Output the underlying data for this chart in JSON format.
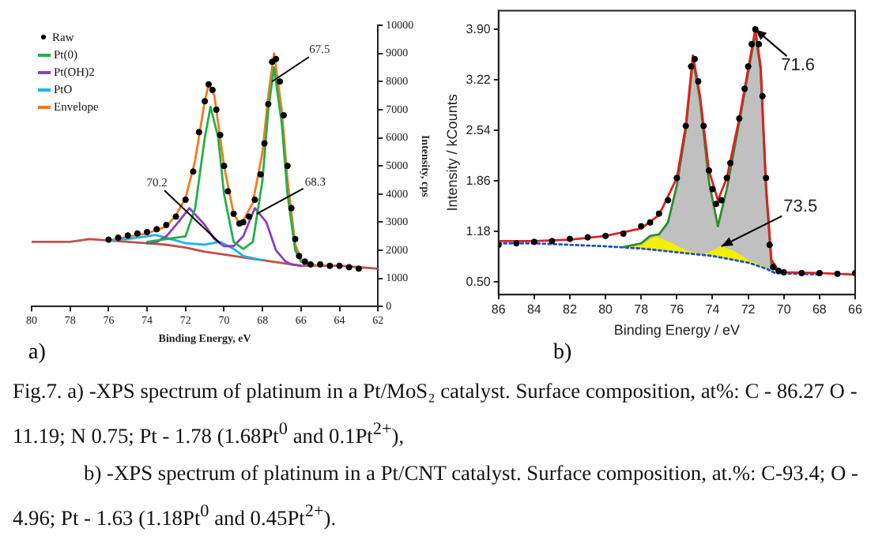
{
  "chart_data": [
    {
      "type": "line",
      "xlabel": "Binding Energy, eV",
      "ylabel": "Intensity, cps",
      "xlim": [
        80,
        62
      ],
      "xticks": [
        80,
        78,
        76,
        74,
        72,
        70,
        68,
        66,
        64,
        62
      ],
      "ylim": [
        0,
        10000
      ],
      "yticks": [
        0,
        1000,
        2000,
        3000,
        4000,
        5000,
        6000,
        7000,
        8000,
        9000,
        10000
      ],
      "legend": "top left",
      "annotations": [
        {
          "text": "67.5",
          "x": 67.5,
          "y": 8000
        },
        {
          "text": "70.2",
          "x": 70.2,
          "y": 2250
        },
        {
          "text": "68.3",
          "x": 68.3,
          "y": 3300
        },
        "a)",
        "Fig.7. a) -XPS spectrum of platinum in a Pt/MoS₂ catalyst. Surface composition, at%: C - 86.27 O - 11.19; N 0.75; Pt - 1.78 (1.68Pt$^{0}$ and 0.1Pt$^{2+}$),"
      ],
      "series": [
        {
          "name": "Raw",
          "type": "scatter",
          "marker": "circle",
          "color": "#000000",
          "x": [
            76,
            75.5,
            75,
            74.5,
            74,
            73.5,
            73,
            72.5,
            72,
            71.6,
            71.3,
            71,
            70.8,
            70.6,
            70.4,
            70.2,
            70,
            69.8,
            69.5,
            69.2,
            69,
            68.7,
            68.4,
            68.1,
            67.9,
            67.7,
            67.5,
            67.3,
            67.1,
            66.9,
            66.7,
            66.5,
            66.3,
            66.1,
            65.8,
            65.5,
            65,
            64.5,
            64,
            63.5,
            63
          ],
          "values": [
            2380,
            2450,
            2530,
            2600,
            2650,
            2750,
            2900,
            3200,
            3800,
            4800,
            6200,
            7300,
            7900,
            7700,
            7000,
            6100,
            5000,
            4100,
            3300,
            2950,
            3000,
            3200,
            3800,
            4700,
            5800,
            7200,
            8700,
            8800,
            8000,
            6800,
            5000,
            3500,
            2400,
            1800,
            1600,
            1500,
            1500,
            1450,
            1450,
            1400,
            1350
          ]
        },
        {
          "name": "Pt(0)",
          "color": "#22b04a",
          "x": [
            74,
            73,
            72,
            71.5,
            71,
            70.7,
            70.3,
            70,
            69.5,
            69,
            68.5,
            68,
            67.7,
            67.4,
            67,
            66.7,
            66.3,
            66,
            65.5
          ],
          "values": [
            2300,
            2400,
            2500,
            3500,
            6000,
            7100,
            6000,
            4000,
            2300,
            2050,
            2300,
            4500,
            7000,
            8500,
            6500,
            4000,
            2000,
            1600,
            1500
          ]
        },
        {
          "name": "Pt(OH)2",
          "color": "#8a3fc0",
          "x": [
            74,
            73.5,
            73,
            72.5,
            71.8,
            71,
            70.5,
            70,
            69.5,
            69,
            68.4,
            67.8,
            67.3,
            66.8,
            66.5,
            66
          ],
          "values": [
            2250,
            2300,
            2500,
            2900,
            3500,
            2900,
            2400,
            2150,
            2150,
            2500,
            3500,
            3000,
            2000,
            1600,
            1500,
            1450
          ]
        },
        {
          "name": "PtO",
          "color": "#1eb4e8",
          "x": [
            76,
            75,
            74,
            73.6,
            73,
            72,
            71,
            70.2,
            69.5,
            69,
            68
          ],
          "values": [
            2350,
            2400,
            2500,
            2550,
            2450,
            2250,
            2200,
            2300,
            2050,
            1800,
            1650
          ]
        },
        {
          "name": "Envelope",
          "color": "#f07c1e",
          "x": [
            76,
            75,
            74,
            73,
            72.5,
            72,
            71.5,
            71,
            70.8,
            70.5,
            70,
            69.5,
            69.2,
            69,
            68.5,
            68,
            67.7,
            67.4,
            67,
            66.7,
            66.3,
            66,
            65.5,
            65
          ],
          "values": [
            2350,
            2480,
            2600,
            2850,
            3250,
            3850,
            5200,
            7300,
            7900,
            7500,
            5000,
            3300,
            2950,
            3050,
            3700,
            5500,
            7500,
            9000,
            7000,
            4500,
            2200,
            1700,
            1500,
            1450
          ]
        },
        {
          "color": "#c0504d",
          "x": [
            80,
            78,
            77,
            76,
            75,
            74,
            73,
            72,
            71,
            70,
            69,
            68,
            67,
            66,
            65,
            64,
            63,
            62
          ],
          "values": [
            2300,
            2300,
            2400,
            2350,
            2300,
            2250,
            2200,
            2100,
            1950,
            1850,
            1750,
            1650,
            1550,
            1450,
            1450,
            1450,
            1400,
            1350
          ]
        }
      ]
    },
    {
      "type": "line",
      "xlabel": "Binding Energy / eV",
      "ylabel": "Intensity / kCounts",
      "xlim": [
        86,
        66
      ],
      "xticks": [
        86,
        84,
        82,
        80,
        78,
        76,
        74,
        72,
        70,
        68,
        66
      ],
      "ylim": [
        0.33,
        4.15
      ],
      "yticks": [
        {
          "value": 0.5,
          "label": "0.50"
        },
        1.18,
        1.86,
        2.54,
        3.22,
        {
          "value": 3.9,
          "label": "3.90"
        }
      ],
      "annotations": [
        {
          "text": "71.6",
          "x": 71.6,
          "y": 3.9
        },
        {
          "text": "73.5",
          "x": 73.5,
          "y": 0.98
        },
        "b)",
        "b) -XPS spectrum of platinum in a Pt/CNT catalyst. Surface composition, at.%: C-93.4; O - 4.96; Pt - 1.63 (1.18Pt$^{0}$ and 0.45Pt$^{2+}$)."
      ],
      "series": [
        {
          "type": "scatter",
          "marker": "circle",
          "color": "#000000",
          "x": [
            86,
            85,
            84,
            83,
            82,
            81,
            80,
            79,
            78,
            77.5,
            77,
            76.5,
            76,
            75.5,
            75.2,
            75,
            74.8,
            74.5,
            74.2,
            74,
            73.8,
            73.5,
            73.2,
            73,
            72.5,
            72.2,
            72,
            71.8,
            71.6,
            71.4,
            71.2,
            71,
            70.8,
            70.6,
            70.3,
            70,
            69,
            68,
            67,
            66
          ],
          "values": [
            1.0,
            1.02,
            1.04,
            1.05,
            1.08,
            1.1,
            1.12,
            1.15,
            1.25,
            1.3,
            1.42,
            1.6,
            1.9,
            2.6,
            3.4,
            3.5,
            3.2,
            2.6,
            2.0,
            1.75,
            1.55,
            1.6,
            1.9,
            2.1,
            2.7,
            3.1,
            3.4,
            3.7,
            3.9,
            3.7,
            3.0,
            1.9,
            1.0,
            0.7,
            0.65,
            0.63,
            0.62,
            0.62,
            0.61,
            0.62
          ]
        },
        {
          "color": "#e02020",
          "x": [
            86,
            84,
            82,
            80,
            78,
            77,
            76,
            75.5,
            75.1,
            74.7,
            74.2,
            73.7,
            73.2,
            72.5,
            71.9,
            71.6,
            71.3,
            71,
            70.7,
            70.3,
            70,
            68,
            66
          ],
          "values": [
            1.05,
            1.05,
            1.07,
            1.12,
            1.22,
            1.4,
            1.9,
            2.6,
            3.55,
            3.0,
            2.0,
            1.6,
            1.9,
            2.7,
            3.5,
            3.9,
            3.4,
            1.8,
            0.8,
            0.65,
            0.63,
            0.62,
            0.6
          ]
        },
        {
          "color": "#2e8b2e",
          "x": [
            79,
            78,
            77.5,
            77,
            76.5,
            76,
            75.5,
            75.1,
            74.7,
            74.2,
            73.7,
            73.2,
            72.5,
            71.9,
            71.6,
            71.3,
            71,
            70.7,
            70.3,
            70
          ],
          "values": [
            0.97,
            1.02,
            1.12,
            1.14,
            1.3,
            1.8,
            2.55,
            3.5,
            2.95,
            1.85,
            1.25,
            1.75,
            2.65,
            3.45,
            3.85,
            3.35,
            1.75,
            0.75,
            0.63,
            0.62
          ]
        },
        {
          "color": "#1f4fd0",
          "line_style": "dotted",
          "x": [
            86,
            84,
            82,
            80,
            78,
            76,
            74,
            72,
            71,
            70.5,
            68
          ],
          "values": [
            1.02,
            1.02,
            1.0,
            0.98,
            0.95,
            0.9,
            0.85,
            0.76,
            0.68,
            0.62,
            0.6
          ]
        },
        {
          "type": "area",
          "color": "#f0f000",
          "x": [
            80,
            79,
            78,
            77.2,
            76.5,
            75.5,
            74.5,
            73.5,
            72.8,
            72,
            71,
            70.5
          ],
          "values": [
            0.98,
            0.97,
            1.0,
            1.12,
            1.05,
            0.93,
            0.87,
            0.98,
            0.92,
            0.8,
            0.7,
            0.62
          ]
        },
        {
          "type": "area",
          "color": "#c0c0c0",
          "x": [
            80,
            79,
            78,
            77.5,
            77,
            76.5,
            76,
            75.5,
            75.1,
            74.7,
            74.2,
            73.7,
            73.2,
            72.5,
            71.9,
            71.6,
            71.3,
            71,
            70.7,
            70.5
          ],
          "values": [
            0.98,
            0.97,
            1.02,
            1.12,
            1.14,
            1.3,
            1.8,
            2.55,
            3.5,
            2.95,
            1.85,
            1.25,
            1.75,
            2.65,
            3.45,
            3.85,
            3.35,
            1.75,
            0.75,
            0.62
          ]
        }
      ]
    }
  ]
}
